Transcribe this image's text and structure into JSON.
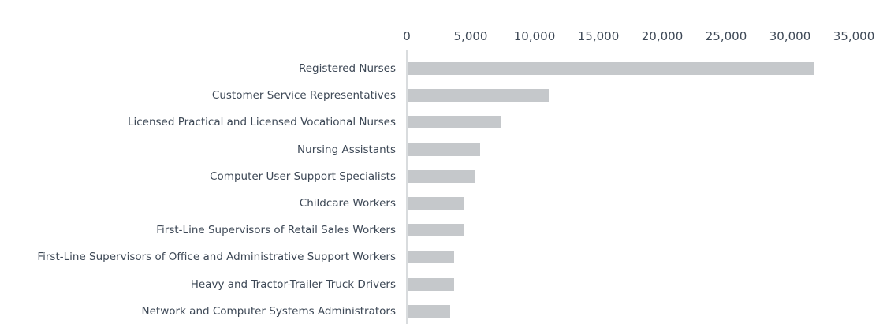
{
  "chart_data": {
    "type": "bar",
    "orientation": "horizontal",
    "title": "",
    "xlabel": "",
    "ylabel": "",
    "axis_position": "top",
    "grid": false,
    "legend": false,
    "xlim": [
      0,
      35000
    ],
    "x_ticks": [
      0,
      5000,
      10000,
      15000,
      20000,
      25000,
      30000,
      35000
    ],
    "categories": [
      "Registered Nurses",
      "Customer Service Representatives",
      "Licensed Practical and Licensed Vocational Nurses",
      "Nursing Assistants",
      "Computer User Support Specialists",
      "Childcare Workers",
      "First-Line Supervisors of Retail Sales Workers",
      "First-Line Supervisors of Office and Administrative Support Workers",
      "Heavy and Tractor-Trailer Truck Drivers",
      "Network and Computer Systems Administrators"
    ],
    "values": [
      31700,
      11000,
      7200,
      5600,
      5200,
      4300,
      4300,
      3600,
      3550,
      3300
    ],
    "colors": {
      "bar_fill": "#c5c8cb",
      "axis_line": "#d9dcde",
      "text": "#3d4856",
      "background": "#ffffff"
    }
  }
}
